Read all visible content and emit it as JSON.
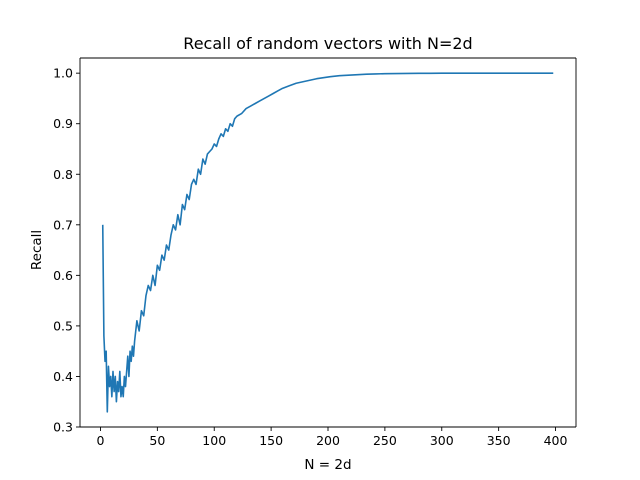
{
  "chart_data": {
    "type": "line",
    "title": "Recall of random vectors with N=2d",
    "xlabel": "N = 2d",
    "ylabel": "Recall",
    "xlim": [
      -18,
      418
    ],
    "ylim": [
      0.3,
      1.03
    ],
    "xticks": [
      0,
      50,
      100,
      150,
      200,
      250,
      300,
      350,
      400
    ],
    "yticks": [
      0.3,
      0.4,
      0.5,
      0.6,
      0.7,
      0.8,
      0.9,
      1.0
    ],
    "grid": false,
    "series": [
      {
        "color": "#1f77b4",
        "x": [
          2,
          3,
          4,
          5,
          6,
          7,
          8,
          9,
          10,
          11,
          12,
          13,
          14,
          15,
          16,
          17,
          18,
          19,
          20,
          21,
          22,
          23,
          24,
          25,
          26,
          27,
          28,
          29,
          30,
          32,
          34,
          36,
          38,
          40,
          42,
          44,
          46,
          48,
          50,
          52,
          54,
          56,
          58,
          60,
          62,
          64,
          66,
          68,
          70,
          72,
          74,
          76,
          78,
          80,
          82,
          84,
          86,
          88,
          90,
          92,
          94,
          96,
          98,
          100,
          102,
          104,
          106,
          108,
          110,
          112,
          114,
          116,
          118,
          120,
          124,
          128,
          132,
          136,
          140,
          144,
          148,
          152,
          156,
          160,
          166,
          172,
          178,
          184,
          190,
          196,
          202,
          210,
          218,
          226,
          234,
          242,
          250,
          260,
          270,
          280,
          290,
          300,
          320,
          340,
          360,
          380,
          398
        ],
        "y": [
          0.7,
          0.48,
          0.43,
          0.45,
          0.33,
          0.42,
          0.38,
          0.4,
          0.36,
          0.41,
          0.37,
          0.4,
          0.35,
          0.39,
          0.37,
          0.41,
          0.36,
          0.38,
          0.36,
          0.4,
          0.38,
          0.41,
          0.44,
          0.4,
          0.45,
          0.43,
          0.46,
          0.44,
          0.47,
          0.51,
          0.49,
          0.53,
          0.52,
          0.56,
          0.58,
          0.57,
          0.6,
          0.58,
          0.62,
          0.61,
          0.64,
          0.63,
          0.66,
          0.65,
          0.68,
          0.7,
          0.69,
          0.72,
          0.7,
          0.74,
          0.73,
          0.76,
          0.75,
          0.78,
          0.79,
          0.78,
          0.81,
          0.8,
          0.83,
          0.82,
          0.84,
          0.845,
          0.85,
          0.86,
          0.855,
          0.87,
          0.88,
          0.875,
          0.89,
          0.885,
          0.9,
          0.895,
          0.91,
          0.915,
          0.92,
          0.93,
          0.935,
          0.94,
          0.945,
          0.95,
          0.955,
          0.96,
          0.965,
          0.97,
          0.975,
          0.98,
          0.983,
          0.986,
          0.989,
          0.991,
          0.993,
          0.995,
          0.996,
          0.997,
          0.998,
          0.9985,
          0.999,
          0.9993,
          0.9995,
          0.9997,
          0.9998,
          0.9999,
          1.0,
          1.0,
          1.0,
          1.0,
          1.0
        ]
      }
    ]
  }
}
